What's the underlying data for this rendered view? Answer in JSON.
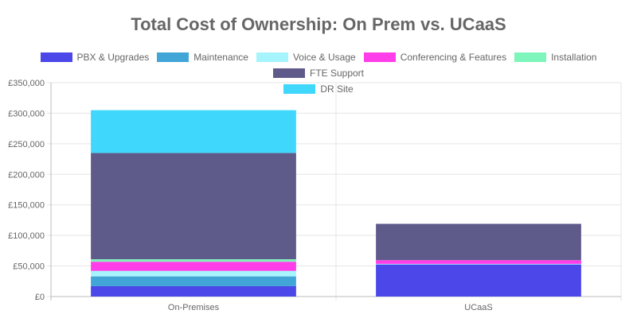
{
  "chart_data": {
    "type": "bar",
    "stacked": true,
    "title": "Total Cost of Ownership: On Prem vs. UCaaS",
    "categories": [
      "On-Premises",
      "UCaaS"
    ],
    "ylim": [
      0,
      350000
    ],
    "yticks": [
      "£0",
      "£50,000",
      "£100,000",
      "£150,000",
      "£200,000",
      "£250,000",
      "£300,000",
      "£350,000"
    ],
    "grid": true,
    "legend_position": "top",
    "series": [
      {
        "name": "PBX & Upgrades",
        "color": "#4b47e9",
        "values": [
          17000,
          52500
        ]
      },
      {
        "name": "Maintenance",
        "color": "#41a5d8",
        "values": [
          16000,
          0
        ]
      },
      {
        "name": "Voice & Usage",
        "color": "#a6f4fc",
        "values": [
          9000,
          1000
        ]
      },
      {
        "name": "Conferencing & Features",
        "color": "#ff3ee9",
        "values": [
          15000,
          6000
        ]
      },
      {
        "name": "Installation",
        "color": "#7ef5ba",
        "values": [
          4000,
          0
        ]
      },
      {
        "name": "FTE Support",
        "color": "#5e5b8b",
        "values": [
          174000,
          59500
        ]
      },
      {
        "name": "DR Site",
        "color": "#40d7fc",
        "values": [
          70000,
          0
        ]
      }
    ]
  }
}
